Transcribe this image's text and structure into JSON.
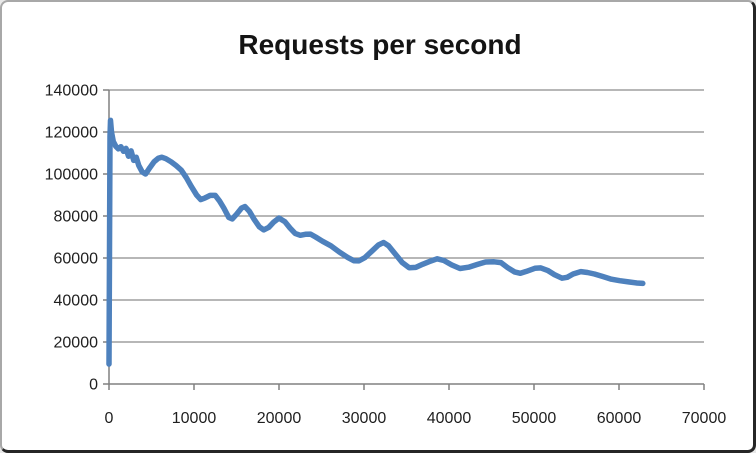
{
  "chart": {
    "title": "Requests per second"
  },
  "style": {
    "line_color": "#4E81BD",
    "grid_color": "#8C8C8C",
    "axis_color": "#808080",
    "label_color": "#1F1F1F",
    "background": "#FFFFFF"
  },
  "chart_data": {
    "type": "line",
    "title": "Requests per second",
    "xlabel": "",
    "ylabel": "",
    "xlim": [
      0,
      70000
    ],
    "ylim": [
      0,
      140000
    ],
    "x_ticks": [
      0,
      10000,
      20000,
      30000,
      40000,
      50000,
      60000,
      70000
    ],
    "y_ticks": [
      0,
      20000,
      40000,
      60000,
      80000,
      100000,
      120000,
      140000
    ],
    "grid": "horizontal",
    "legend_position": "none",
    "series": [
      {
        "name": "Requests per second",
        "color": "#4E81BD",
        "points": [
          [
            0,
            9500
          ],
          [
            120,
            118000
          ],
          [
            180,
            125500
          ],
          [
            300,
            120000
          ],
          [
            500,
            115500
          ],
          [
            800,
            113200
          ],
          [
            1100,
            112000
          ],
          [
            1400,
            113000
          ],
          [
            1700,
            110800
          ],
          [
            2000,
            112200
          ],
          [
            2300,
            108500
          ],
          [
            2600,
            111000
          ],
          [
            2900,
            106500
          ],
          [
            3200,
            108000
          ],
          [
            3500,
            104000
          ],
          [
            3900,
            101000
          ],
          [
            4300,
            100000
          ],
          [
            4800,
            103000
          ],
          [
            5300,
            105800
          ],
          [
            5800,
            107500
          ],
          [
            6200,
            108000
          ],
          [
            6700,
            107300
          ],
          [
            7300,
            105800
          ],
          [
            7900,
            104000
          ],
          [
            8500,
            101800
          ],
          [
            9100,
            98200
          ],
          [
            9700,
            94000
          ],
          [
            10300,
            90000
          ],
          [
            10800,
            87800
          ],
          [
            11300,
            88600
          ],
          [
            11900,
            89800
          ],
          [
            12500,
            89800
          ],
          [
            13000,
            87200
          ],
          [
            13500,
            83800
          ],
          [
            14100,
            79300
          ],
          [
            14500,
            78600
          ],
          [
            15000,
            80800
          ],
          [
            15600,
            83800
          ],
          [
            16000,
            84500
          ],
          [
            16500,
            82300
          ],
          [
            17100,
            78300
          ],
          [
            17700,
            74800
          ],
          [
            18200,
            73400
          ],
          [
            18800,
            74600
          ],
          [
            19400,
            77200
          ],
          [
            20000,
            79000
          ],
          [
            20700,
            77300
          ],
          [
            21300,
            74300
          ],
          [
            21900,
            71700
          ],
          [
            22500,
            70800
          ],
          [
            23100,
            71300
          ],
          [
            23700,
            71400
          ],
          [
            24300,
            70000
          ],
          [
            25100,
            68000
          ],
          [
            26100,
            65800
          ],
          [
            27100,
            62800
          ],
          [
            28100,
            60200
          ],
          [
            28800,
            58700
          ],
          [
            29400,
            58600
          ],
          [
            30100,
            60200
          ],
          [
            30900,
            63200
          ],
          [
            31700,
            66200
          ],
          [
            32300,
            67400
          ],
          [
            32900,
            65800
          ],
          [
            33700,
            61800
          ],
          [
            34500,
            57800
          ],
          [
            35300,
            55400
          ],
          [
            36100,
            55500
          ],
          [
            36900,
            57000
          ],
          [
            37700,
            58300
          ],
          [
            38600,
            59600
          ],
          [
            39400,
            58800
          ],
          [
            40300,
            56700
          ],
          [
            41300,
            55000
          ],
          [
            42300,
            55600
          ],
          [
            43300,
            56900
          ],
          [
            44300,
            58100
          ],
          [
            45300,
            58200
          ],
          [
            46100,
            57800
          ],
          [
            46900,
            55400
          ],
          [
            47700,
            53400
          ],
          [
            48400,
            52700
          ],
          [
            49100,
            53600
          ],
          [
            50100,
            55100
          ],
          [
            50800,
            55300
          ],
          [
            51600,
            54100
          ],
          [
            52400,
            52100
          ],
          [
            53300,
            50400
          ],
          [
            53900,
            50800
          ],
          [
            54600,
            52400
          ],
          [
            55500,
            53500
          ],
          [
            56300,
            53100
          ],
          [
            57100,
            52400
          ],
          [
            58100,
            51200
          ],
          [
            59100,
            49900
          ],
          [
            60100,
            49200
          ],
          [
            61100,
            48600
          ],
          [
            62100,
            48100
          ],
          [
            62800,
            47900
          ]
        ]
      }
    ]
  }
}
